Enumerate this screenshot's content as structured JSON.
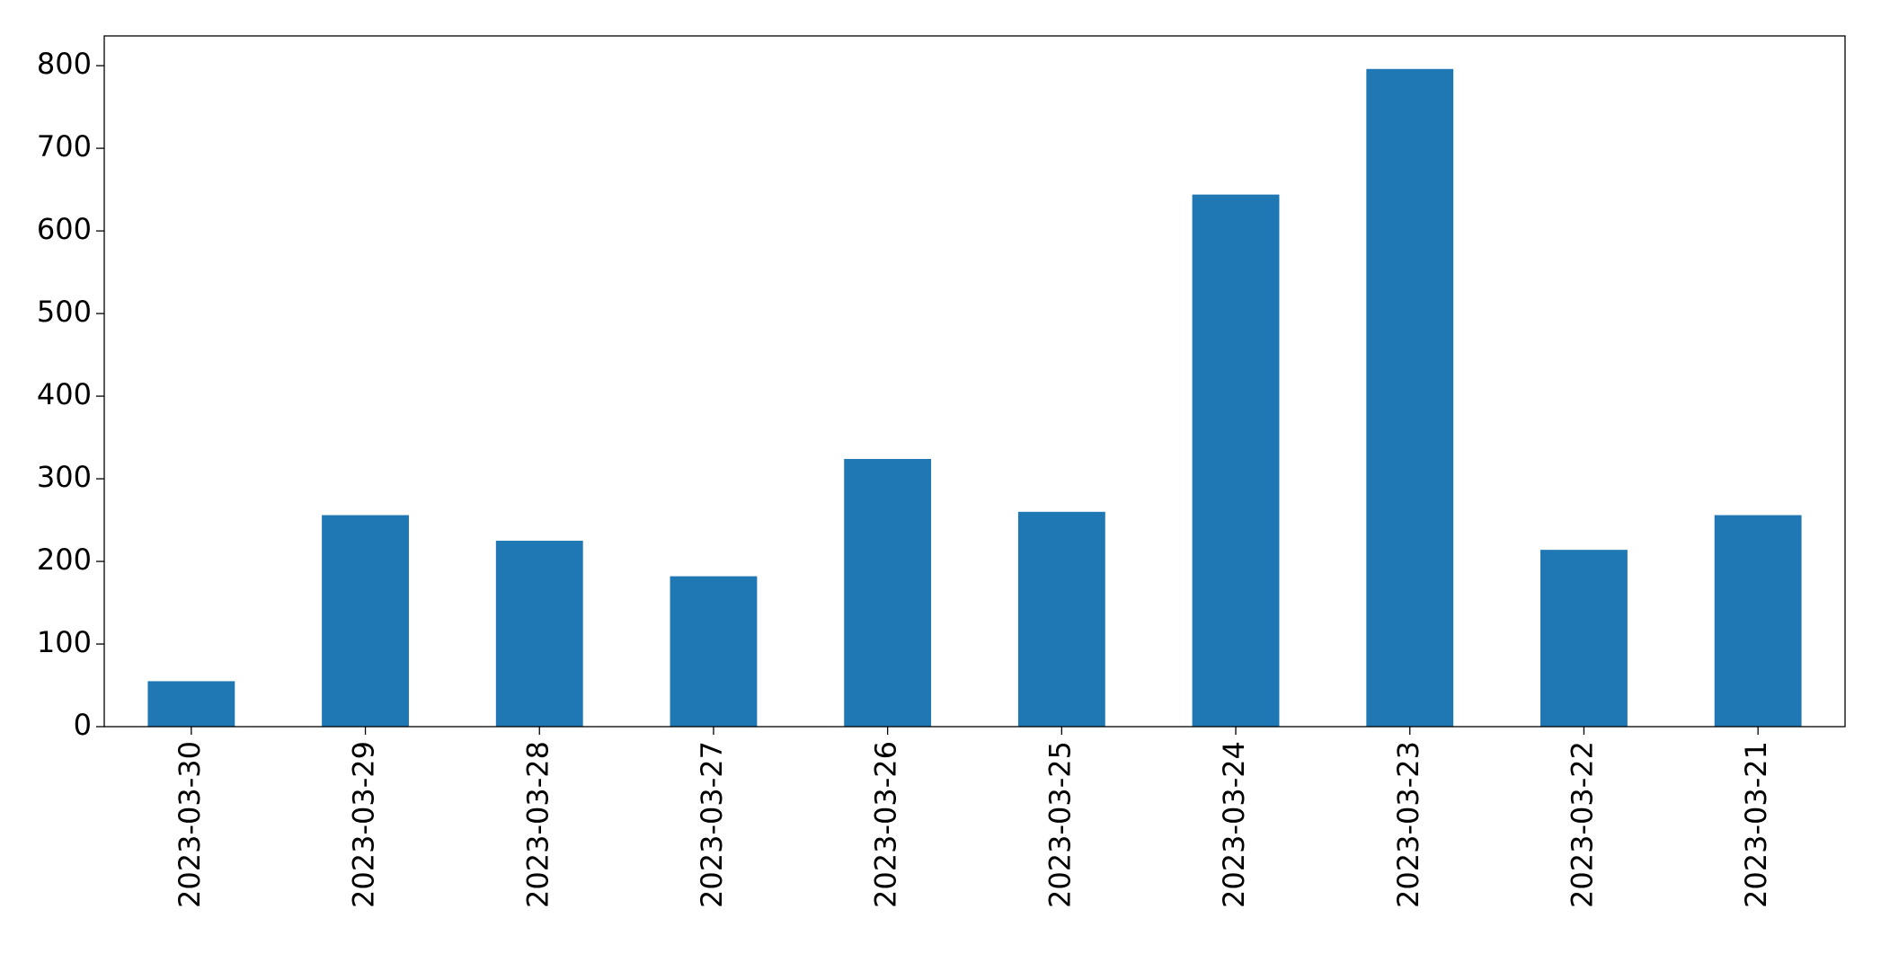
{
  "chart_data": {
    "type": "bar",
    "categories": [
      "2023-03-30",
      "2023-03-29",
      "2023-03-28",
      "2023-03-27",
      "2023-03-26",
      "2023-03-25",
      "2023-03-24",
      "2023-03-23",
      "2023-03-22",
      "2023-03-21"
    ],
    "values": [
      55,
      256,
      225,
      182,
      324,
      260,
      644,
      796,
      214,
      256
    ],
    "color": "#1f77b4",
    "ylim": [
      0,
      836
    ],
    "yticks": [
      0,
      100,
      200,
      300,
      400,
      500,
      600,
      700,
      800
    ],
    "grid": false
  }
}
